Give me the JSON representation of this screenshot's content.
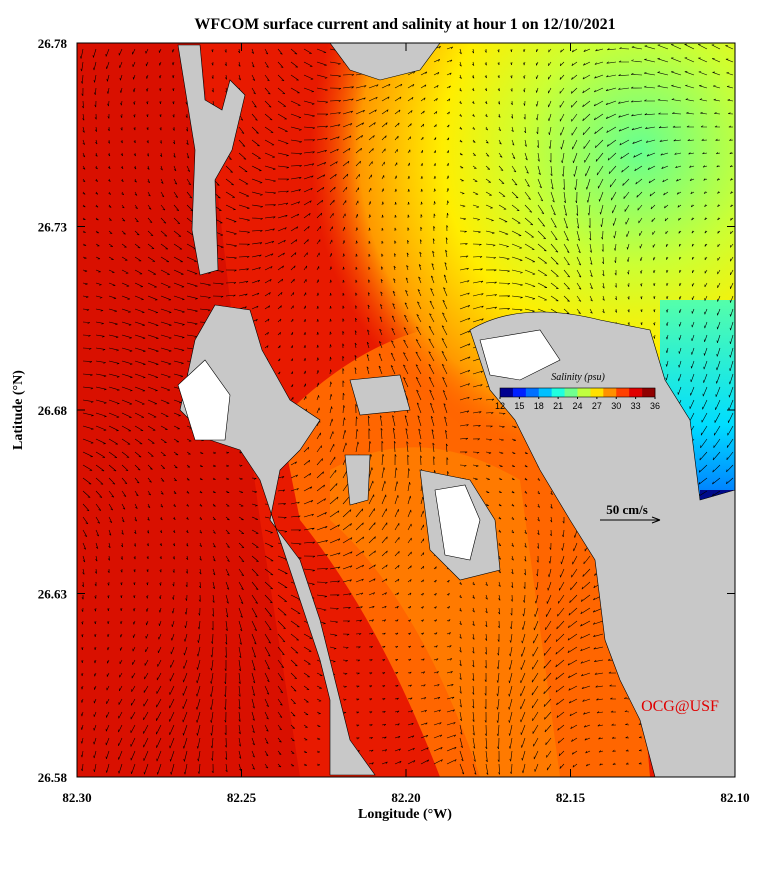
{
  "title": "WFCOM surface current and salinity at hour 1 on 12/10/2021",
  "x_axis": {
    "label": "Longitude (°W)",
    "lim": [
      82.3,
      82.1
    ],
    "ticks": [
      {
        "value": 82.3,
        "label": "82.30"
      },
      {
        "value": 82.25,
        "label": "82.25"
      },
      {
        "value": 82.2,
        "label": "82.20"
      },
      {
        "value": 82.15,
        "label": "82.15"
      },
      {
        "value": 82.1,
        "label": "82.10"
      }
    ]
  },
  "y_axis": {
    "label": "Latitude (°N)",
    "lim": [
      26.58,
      26.78
    ],
    "ticks": [
      26.78,
      26.73,
      26.68,
      26.63,
      26.58
    ]
  },
  "colorbar": {
    "title": "Salinity (psu)",
    "ticks": [
      12,
      15,
      18,
      21,
      24,
      27,
      30,
      33,
      36
    ]
  },
  "scale_arrow_label": "50 cm/s",
  "credit": "OCG@USF"
}
